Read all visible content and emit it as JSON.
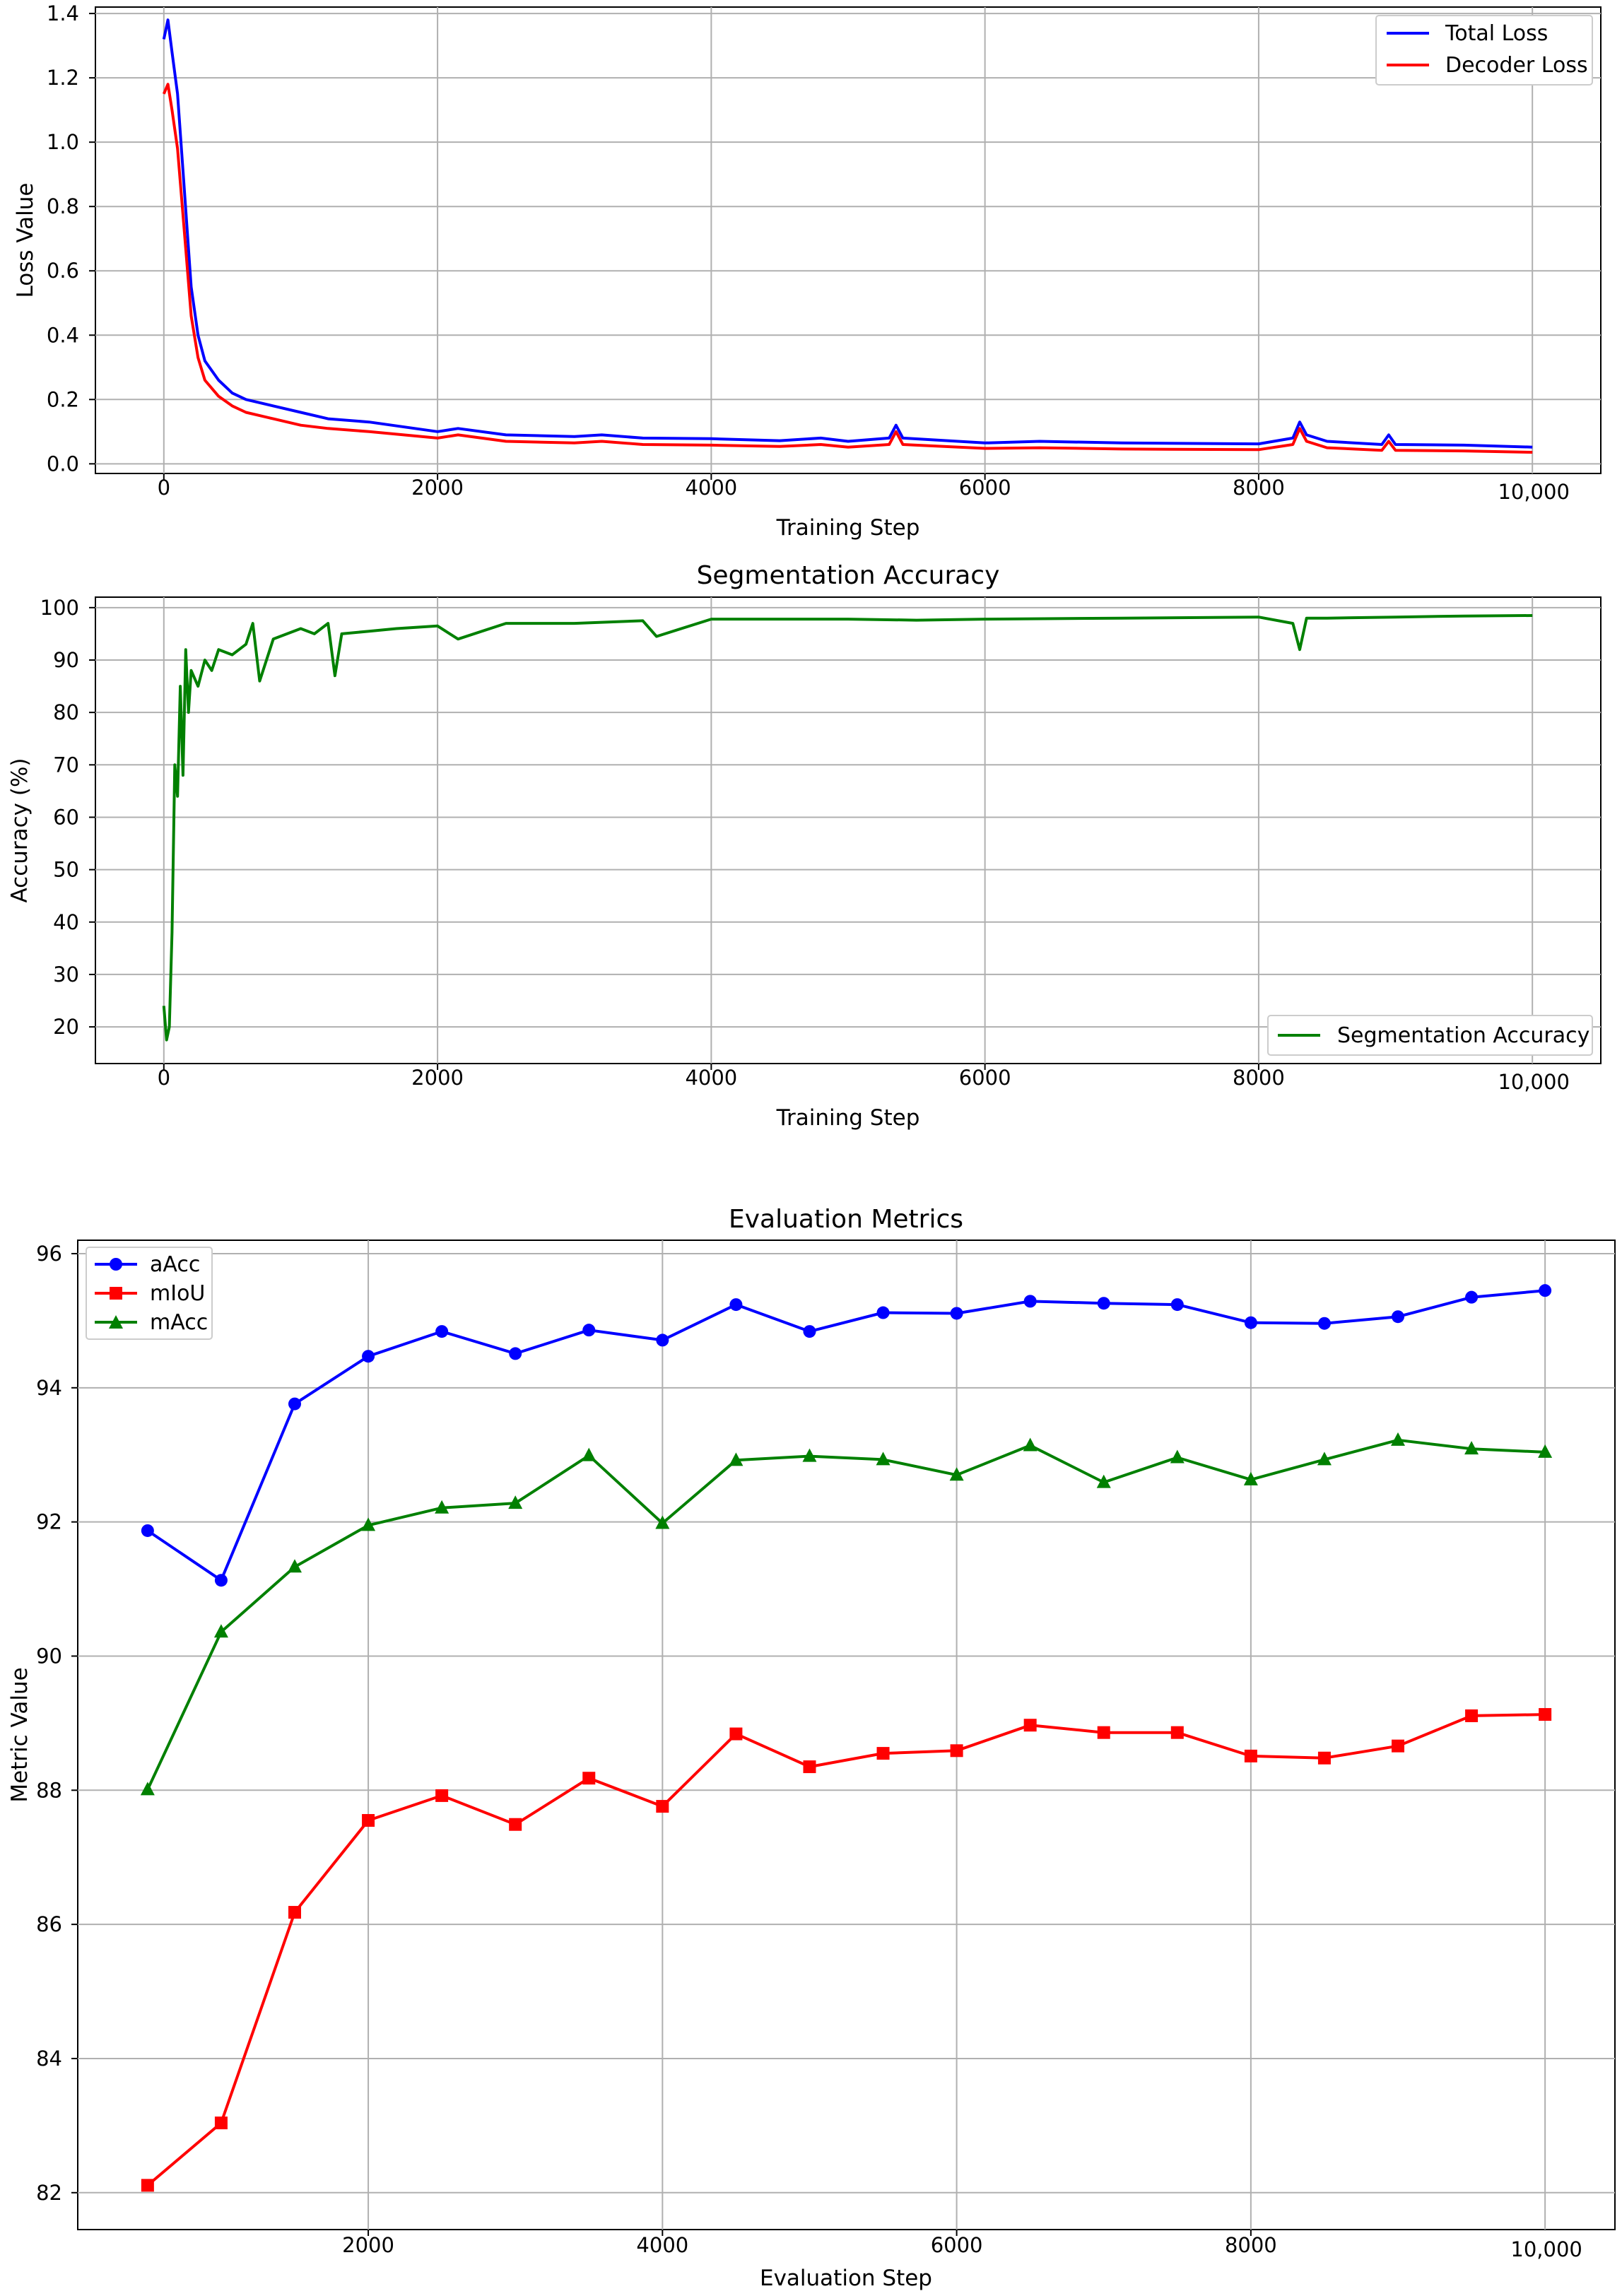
{
  "chart_data": [
    {
      "type": "line",
      "title": "",
      "xlabel": "Training Step",
      "ylabel": "Loss Value",
      "xlim": [
        -500,
        10500
      ],
      "ylim": [
        -0.03,
        1.42
      ],
      "xticks": [
        0,
        2000,
        4000,
        6000,
        8000
      ],
      "xtick_labels": [
        "0",
        "2000",
        "4000",
        "6000",
        "8000"
      ],
      "x_extra_label": "10,000",
      "yticks": [
        0.0,
        0.2,
        0.4,
        0.6,
        0.8,
        1.0,
        1.2,
        1.4
      ],
      "ytick_labels": [
        "0.0",
        "0.2",
        "0.4",
        "0.6",
        "0.8",
        "1.0",
        "1.2",
        "1.4"
      ],
      "grid": true,
      "legend": "upper-right",
      "series": [
        {
          "name": "Total Loss",
          "color": "#0000ff",
          "x": [
            0,
            30,
            60,
            100,
            150,
            200,
            250,
            300,
            400,
            500,
            600,
            800,
            1000,
            1200,
            1500,
            2000,
            2150,
            2500,
            3000,
            3200,
            3500,
            4000,
            4500,
            4800,
            5000,
            5300,
            5350,
            5400,
            6000,
            6400,
            7000,
            8000,
            8250,
            8300,
            8350,
            8500,
            8900,
            8950,
            9000,
            9500,
            10000
          ],
          "y": [
            1.32,
            1.38,
            1.28,
            1.15,
            0.85,
            0.55,
            0.4,
            0.32,
            0.26,
            0.22,
            0.2,
            0.18,
            0.16,
            0.14,
            0.13,
            0.1,
            0.11,
            0.09,
            0.085,
            0.09,
            0.08,
            0.078,
            0.072,
            0.08,
            0.07,
            0.08,
            0.12,
            0.08,
            0.065,
            0.07,
            0.065,
            0.062,
            0.08,
            0.13,
            0.09,
            0.07,
            0.06,
            0.09,
            0.06,
            0.058,
            0.052
          ]
        },
        {
          "name": "Decoder Loss",
          "color": "#ff0000",
          "x": [
            0,
            30,
            60,
            100,
            150,
            200,
            250,
            300,
            400,
            500,
            600,
            800,
            1000,
            1200,
            1500,
            2000,
            2150,
            2500,
            3000,
            3200,
            3500,
            4000,
            4500,
            4800,
            5000,
            5300,
            5350,
            5400,
            6000,
            6400,
            7000,
            8000,
            8250,
            8300,
            8350,
            8500,
            8900,
            8950,
            9000,
            9500,
            10000
          ],
          "y": [
            1.15,
            1.18,
            1.1,
            0.98,
            0.72,
            0.46,
            0.33,
            0.26,
            0.21,
            0.18,
            0.16,
            0.14,
            0.12,
            0.11,
            0.1,
            0.08,
            0.09,
            0.07,
            0.065,
            0.07,
            0.06,
            0.058,
            0.054,
            0.06,
            0.052,
            0.06,
            0.1,
            0.06,
            0.048,
            0.05,
            0.046,
            0.044,
            0.06,
            0.11,
            0.07,
            0.05,
            0.042,
            0.07,
            0.042,
            0.04,
            0.036
          ]
        }
      ]
    },
    {
      "type": "line",
      "title": "Segmentation Accuracy",
      "xlabel": "Training Step",
      "ylabel": "Accuracy (%)",
      "xlim": [
        -500,
        10500
      ],
      "ylim": [
        13,
        102
      ],
      "xticks": [
        0,
        2000,
        4000,
        6000,
        8000
      ],
      "xtick_labels": [
        "0",
        "2000",
        "4000",
        "6000",
        "8000"
      ],
      "x_extra_label": "10,000",
      "yticks": [
        20,
        30,
        40,
        50,
        60,
        70,
        80,
        90,
        100
      ],
      "ytick_labels": [
        "20",
        "30",
        "40",
        "50",
        "60",
        "70",
        "80",
        "90",
        "100"
      ],
      "grid": true,
      "legend": "lower-right",
      "series": [
        {
          "name": "Segmentation Accuracy",
          "color": "#008000",
          "x": [
            0,
            20,
            40,
            60,
            80,
            100,
            120,
            140,
            160,
            180,
            200,
            250,
            300,
            350,
            400,
            500,
            600,
            650,
            700,
            800,
            900,
            1000,
            1100,
            1200,
            1250,
            1300,
            1500,
            1700,
            2000,
            2150,
            2500,
            3000,
            3500,
            3600,
            4000,
            5000,
            5500,
            6000,
            7000,
            8000,
            8250,
            8300,
            8350,
            8500,
            9000,
            9500,
            10000
          ],
          "y": [
            24,
            17.5,
            20,
            38,
            70,
            64,
            85,
            68,
            92,
            80,
            88,
            85,
            90,
            88,
            92,
            91,
            93,
            97,
            86,
            94,
            95,
            96,
            95,
            97,
            87,
            95,
            95.5,
            96,
            96.5,
            94,
            97,
            97,
            97.5,
            94.5,
            97.8,
            97.8,
            97.6,
            97.8,
            98,
            98.2,
            97,
            92,
            98,
            98,
            98.2,
            98.4,
            98.5
          ]
        }
      ]
    },
    {
      "type": "line",
      "title": "Evaluation Metrics",
      "xlabel": "Evaluation Step",
      "ylabel": "Metric Value",
      "xlim": [
        25,
        10475
      ],
      "ylim": [
        81.45,
        96.2
      ],
      "xticks": [
        2000,
        4000,
        6000,
        8000
      ],
      "xtick_labels": [
        "2000",
        "4000",
        "6000",
        "8000"
      ],
      "x_extra_label": "10,000",
      "yticks": [
        82,
        84,
        86,
        88,
        90,
        92,
        94,
        96
      ],
      "ytick_labels": [
        "82",
        "84",
        "86",
        "88",
        "90",
        "92",
        "94",
        "96"
      ],
      "grid": true,
      "legend": "upper-left",
      "x": [
        500,
        1000,
        1500,
        2000,
        2500,
        3000,
        3500,
        4000,
        4500,
        5000,
        5500,
        6000,
        6500,
        7000,
        7500,
        8000,
        8500,
        9000,
        9500,
        10000
      ],
      "series": [
        {
          "name": "aAcc",
          "color": "#0000ff",
          "marker": "circle",
          "values": [
            91.87,
            91.13,
            93.76,
            94.47,
            94.84,
            94.51,
            94.86,
            94.71,
            95.24,
            94.84,
            95.12,
            95.11,
            95.29,
            95.26,
            95.24,
            94.97,
            94.96,
            95.06,
            95.35,
            95.45
          ]
        },
        {
          "name": "mIoU",
          "color": "#ff0000",
          "marker": "square",
          "values": [
            82.11,
            83.04,
            86.18,
            87.55,
            87.92,
            87.49,
            88.18,
            87.76,
            88.84,
            88.35,
            88.55,
            88.59,
            88.97,
            88.86,
            88.86,
            88.51,
            88.48,
            88.66,
            89.11,
            89.13
          ]
        },
        {
          "name": "mAcc",
          "color": "#008000",
          "marker": "triangle",
          "values": [
            88.01,
            90.36,
            91.33,
            91.95,
            92.21,
            92.28,
            92.99,
            91.98,
            92.92,
            92.98,
            92.93,
            92.7,
            93.14,
            92.59,
            92.96,
            92.63,
            92.93,
            93.22,
            93.09,
            93.04
          ]
        }
      ]
    }
  ]
}
